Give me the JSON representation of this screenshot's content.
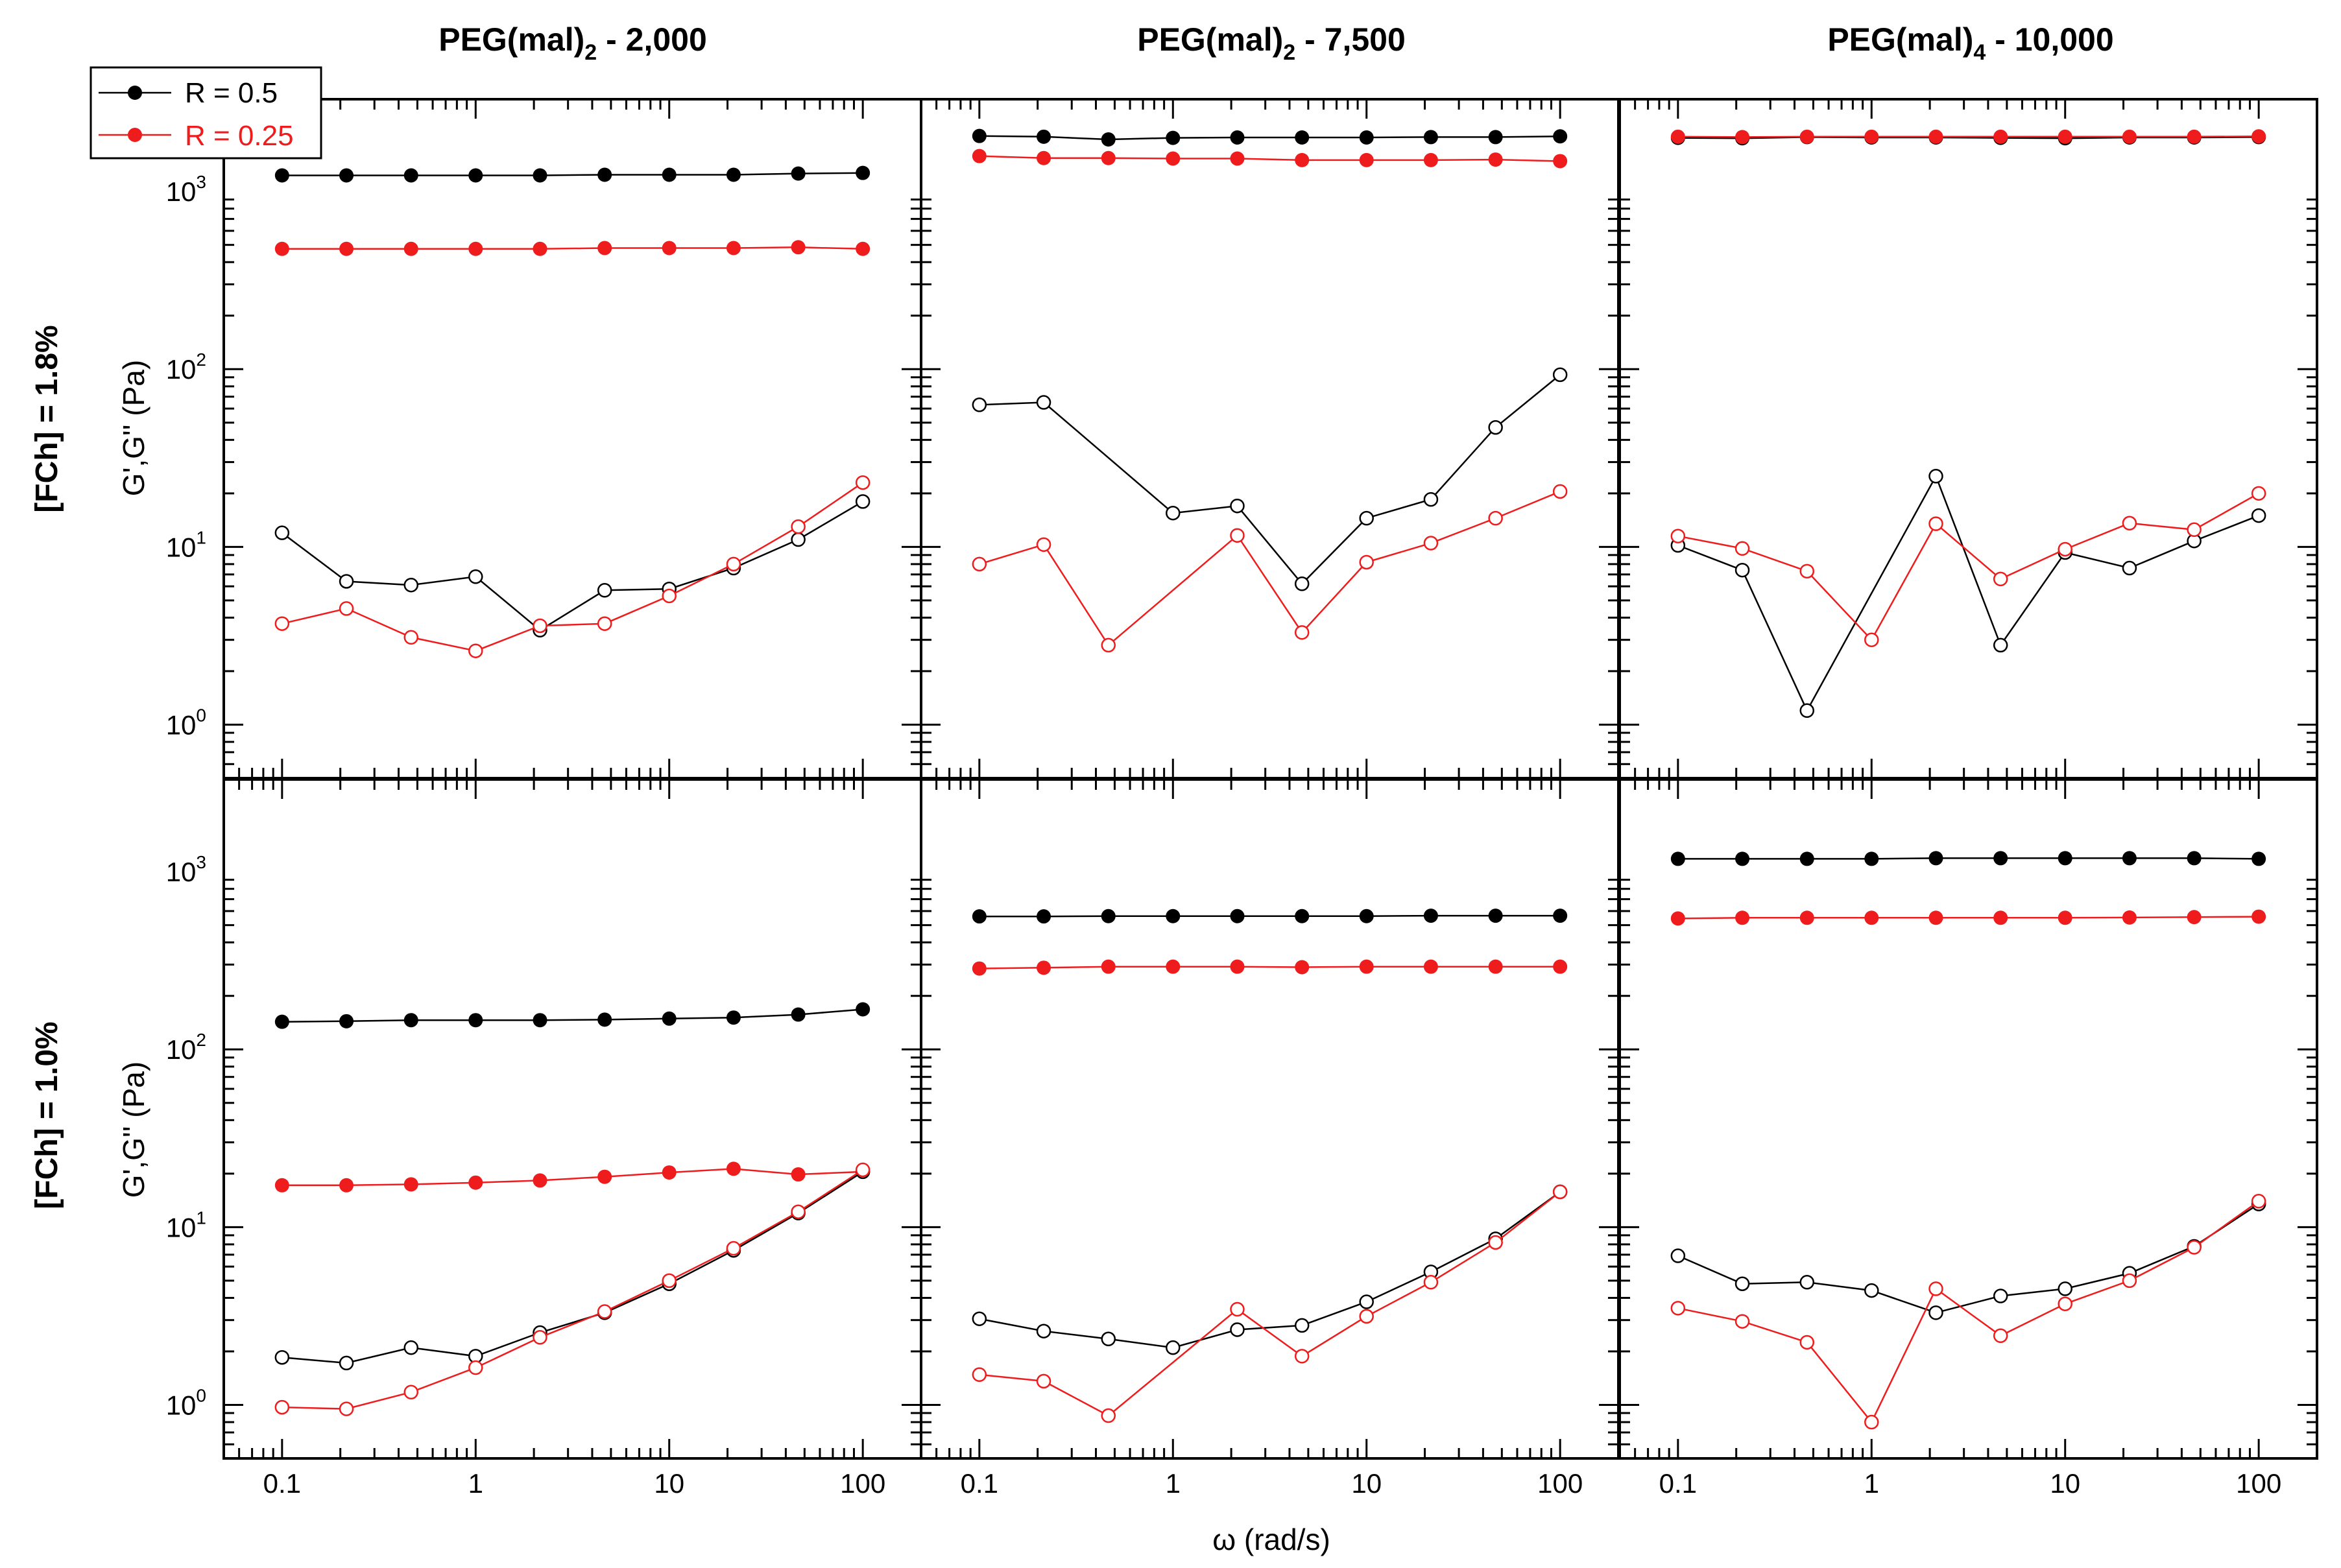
{
  "chart_data": {
    "type": "line",
    "layout": "2x3 grid of log-log panels",
    "x_label": "ω (rad/s)",
    "y_label": "G',G'' (Pa)",
    "x_scale": "log",
    "y_scale": "log",
    "xlim": [
      0.05,
      200
    ],
    "ylim": [
      0.5,
      3300
    ],
    "x_tick_labels": [
      "0.1",
      "1",
      "10",
      "100"
    ],
    "x_tick_values": [
      0.1,
      1,
      10,
      100
    ],
    "y_tick_labels": [
      {
        "base": "10",
        "exp": "0",
        "value": 1
      },
      {
        "base": "10",
        "exp": "1",
        "value": 10
      },
      {
        "base": "10",
        "exp": "2",
        "value": 100
      },
      {
        "base": "10",
        "exp": "3",
        "value": 1000
      }
    ],
    "columns": [
      {
        "main": "PEG(mal)",
        "sub": "2",
        "suffix": " - 2,000"
      },
      {
        "main": "PEG(mal)",
        "sub": "2",
        "suffix": " - 7,500"
      },
      {
        "main": "PEG(mal)",
        "sub": "4",
        "suffix": " - 10,000"
      }
    ],
    "rows": [
      "[FCh] = 1.8%",
      "[FCh] = 1.0%"
    ],
    "legend": [
      {
        "label": "R = 0.5",
        "color": "#000000"
      },
      {
        "label": "R = 0.25",
        "color": "#ee1c1c"
      }
    ],
    "x": [
      0.1,
      0.215,
      0.464,
      1,
      2.15,
      4.64,
      10,
      21.5,
      46.4,
      100
    ],
    "panels": [
      {
        "row": 0,
        "col": 0,
        "series": [
          {
            "name": "G' R = 0.5",
            "color": "#000000",
            "filled": true,
            "values": [
              1230,
              1230,
              1230,
              1230,
              1230,
              1240,
              1240,
              1240,
              1260,
              1270
            ]
          },
          {
            "name": "G' R = 0.25",
            "color": "#ee1c1c",
            "filled": true,
            "values": [
              475,
              475,
              475,
              475,
              475,
              480,
              480,
              480,
              485,
              475
            ]
          },
          {
            "name": "G'' R = 0.5",
            "color": "#000000",
            "filled": false,
            "values": [
              12,
              6.4,
              6.1,
              6.8,
              3.4,
              5.7,
              5.8,
              7.6,
              11,
              18
            ]
          },
          {
            "name": "G'' R = 0.25",
            "color": "#ee1c1c",
            "filled": false,
            "values": [
              3.7,
              4.5,
              3.1,
              2.6,
              3.6,
              3.7,
              5.3,
              8,
              13,
              23
            ]
          }
        ]
      },
      {
        "row": 0,
        "col": 1,
        "series": [
          {
            "name": "G' R = 0.5",
            "color": "#000000",
            "filled": true,
            "values": [
              2050,
              2030,
              1960,
              2000,
              2010,
              2010,
              2010,
              2020,
              2020,
              2040
            ]
          },
          {
            "name": "G' R = 0.25",
            "color": "#ee1c1c",
            "filled": true,
            "values": [
              1580,
              1540,
              1540,
              1530,
              1530,
              1500,
              1500,
              1500,
              1510,
              1480
            ]
          },
          {
            "name": "G'' R = 0.5",
            "color": "#000000",
            "filled": false,
            "values": [
              63,
              65,
              null,
              15.5,
              17,
              6.2,
              14.5,
              18.5,
              47,
              93
            ]
          },
          {
            "name": "G'' R = 0.25",
            "color": "#ee1c1c",
            "filled": false,
            "values": [
              8,
              10.3,
              2.8,
              null,
              11.6,
              3.3,
              8.2,
              10.5,
              14.5,
              20.5
            ]
          }
        ]
      },
      {
        "row": 0,
        "col": 2,
        "series": [
          {
            "name": "G' R = 0.5",
            "color": "#000000",
            "filled": true,
            "values": [
              2000,
              1990,
              2020,
              2010,
              2010,
              2000,
              1990,
              2010,
              2010,
              2020
            ]
          },
          {
            "name": "G' R = 0.25",
            "color": "#ee1c1c",
            "filled": true,
            "values": [
              2030,
              2020,
              2030,
              2030,
              2030,
              2030,
              2030,
              2030,
              2030,
              2040
            ]
          },
          {
            "name": "G'' R = 0.5",
            "color": "#000000",
            "filled": false,
            "values": [
              10.2,
              7.4,
              1.2,
              null,
              25,
              2.8,
              9.3,
              7.6,
              10.8,
              15
            ]
          },
          {
            "name": "G'' R = 0.25",
            "color": "#ee1c1c",
            "filled": false,
            "values": [
              11.5,
              9.8,
              7.3,
              3,
              13.5,
              6.6,
              9.7,
              13.6,
              12.5,
              20
            ]
          }
        ]
      },
      {
        "row": 1,
        "col": 0,
        "series": [
          {
            "name": "G' R = 0.5",
            "color": "#000000",
            "filled": true,
            "values": [
              143,
              144,
              146,
              146,
              146,
              147,
              149,
              151,
              157,
              168
            ]
          },
          {
            "name": "G' R = 0.25",
            "color": "#ee1c1c",
            "filled": true,
            "values": [
              17.2,
              17.2,
              17.4,
              17.8,
              18.3,
              19.2,
              20.3,
              21.3,
              19.8,
              20.5
            ]
          },
          {
            "name": "G'' R = 0.5",
            "color": "#000000",
            "filled": false,
            "values": [
              1.85,
              1.72,
              2.1,
              1.88,
              2.55,
              3.3,
              4.8,
              7.4,
              12,
              20.5
            ]
          },
          {
            "name": "G'' R = 0.25",
            "color": "#ee1c1c",
            "filled": false,
            "values": [
              0.97,
              0.95,
              1.18,
              1.62,
              2.4,
              3.35,
              5,
              7.6,
              12.2,
              21
            ]
          }
        ]
      },
      {
        "row": 1,
        "col": 1,
        "series": [
          {
            "name": "G' R = 0.5",
            "color": "#000000",
            "filled": true,
            "values": [
              560,
              560,
              562,
              562,
              562,
              562,
              562,
              565,
              565,
              565
            ]
          },
          {
            "name": "G' R = 0.25",
            "color": "#ee1c1c",
            "filled": true,
            "values": [
              285,
              288,
              292,
              292,
              292,
              290,
              292,
              292,
              292,
              292
            ]
          },
          {
            "name": "G'' R = 0.5",
            "color": "#000000",
            "filled": false,
            "values": [
              3.05,
              2.6,
              2.35,
              2.1,
              2.65,
              2.8,
              3.8,
              5.6,
              8.6,
              15.8
            ]
          },
          {
            "name": "G'' R = 0.25",
            "color": "#ee1c1c",
            "filled": false,
            "values": [
              1.48,
              1.36,
              0.87,
              null,
              3.45,
              1.88,
              3.15,
              4.9,
              8.2,
              15.8
            ]
          }
        ]
      },
      {
        "row": 1,
        "col": 2,
        "series": [
          {
            "name": "G' R = 0.5",
            "color": "#000000",
            "filled": true,
            "values": [
              1180,
              1180,
              1180,
              1180,
              1190,
              1190,
              1190,
              1190,
              1190,
              1180
            ]
          },
          {
            "name": "G' R = 0.25",
            "color": "#ee1c1c",
            "filled": true,
            "values": [
              545,
              550,
              550,
              550,
              550,
              550,
              550,
              552,
              555,
              558
            ]
          },
          {
            "name": "G'' R = 0.5",
            "color": "#000000",
            "filled": false,
            "values": [
              6.9,
              4.8,
              4.9,
              4.4,
              3.3,
              4.1,
              4.5,
              5.5,
              7.8,
              13.5
            ]
          },
          {
            "name": "G'' R = 0.25",
            "color": "#ee1c1c",
            "filled": false,
            "values": [
              3.5,
              2.95,
              2.25,
              0.8,
              4.5,
              2.45,
              3.7,
              5,
              7.7,
              14
            ]
          }
        ]
      }
    ]
  }
}
